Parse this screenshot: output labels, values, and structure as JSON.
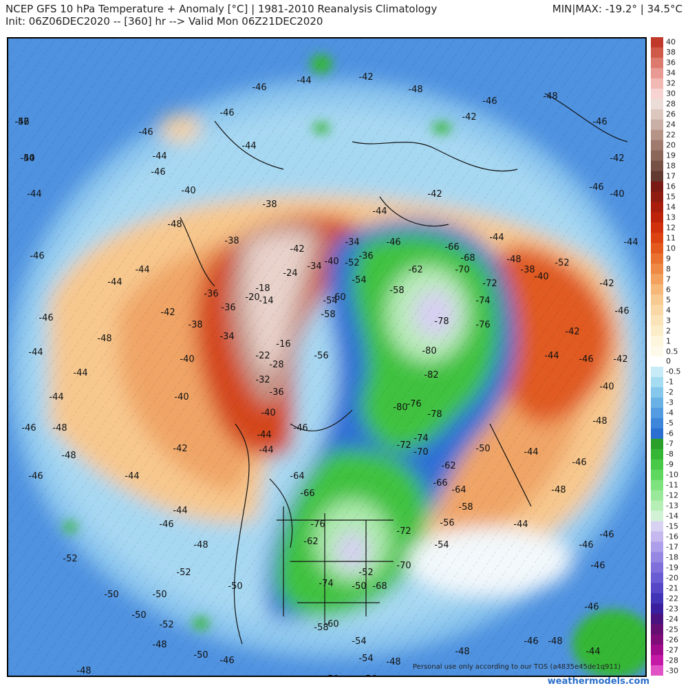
{
  "header": {
    "line1": "NCEP GFS 10 hPa Temperature + Anomaly [°C] | 1981-2010 Reanalysis Climatology",
    "line2": "Init: 06Z06DEC2020 -- [360] hr --> Valid Mon 06Z21DEC2020",
    "minmax": "MIN|MAX: -19.2° | 34.5°C"
  },
  "footer": {
    "brand": "weathermodels.com",
    "note": "Personal use only according to our TOS (a4835e45de1q911)"
  },
  "colorbar": {
    "labels": [
      "40",
      "38",
      "36",
      "34",
      "32",
      "30",
      "28",
      "26",
      "24",
      "22",
      "20",
      "19",
      "18",
      "17",
      "16",
      "15",
      "14",
      "13",
      "12",
      "11",
      "10",
      "9",
      "8",
      "7",
      "6",
      "5",
      "4",
      "3",
      "2",
      "1",
      "0.5",
      "0",
      "-0.5",
      "-1",
      "-2",
      "-3",
      "-4",
      "-5",
      "-6",
      "-7",
      "-8",
      "-9",
      "-10",
      "-11",
      "-12",
      "-13",
      "-14",
      "-15",
      "-16",
      "-17",
      "-18",
      "-19",
      "-20",
      "-21",
      "-22",
      "-23",
      "-24",
      "-25",
      "-26",
      "-27",
      "-28",
      "-30"
    ],
    "colors": [
      "#c0392b",
      "#d05a4a",
      "#dd7a6e",
      "#e89a93",
      "#f2b8b4",
      "#f7d4d1",
      "#ecdcd7",
      "#dcc7bf",
      "#c9afa6",
      "#b69387",
      "#a07a6e",
      "#8c6659",
      "#775046",
      "#633a32",
      "#7a1a14",
      "#8f1c10",
      "#a81d0c",
      "#bd230a",
      "#d0300c",
      "#dd4212",
      "#e45a1e",
      "#e97230",
      "#ee8a45",
      "#f2a25e",
      "#f5b878",
      "#f7ca92",
      "#f9d8a6",
      "#fae3b8",
      "#fcedc9",
      "#fdf5dc",
      "#fefae9",
      "#ffffff",
      "#c8ecf7",
      "#a6dcf1",
      "#86c8ec",
      "#6ab2e6",
      "#539ce1",
      "#3d86da",
      "#2b6fd3",
      "#2aa02a",
      "#35b735",
      "#48c948",
      "#5fd85f",
      "#7ee27e",
      "#9ae99a",
      "#b6efb6",
      "#d2f2d6",
      "#d8d2f2",
      "#c4b8ee",
      "#ae9fea",
      "#9687e3",
      "#7f70dc",
      "#6a5cd2",
      "#5547c6",
      "#4134b7",
      "#3a1f9e",
      "#4a1380",
      "#650f73",
      "#800c7a",
      "#a20c8c",
      "#c51aa8",
      "#e052c5"
    ]
  },
  "contour_labels": [
    "-46",
    "-44",
    "-44",
    "-46",
    "-46",
    "-44",
    "-44",
    "-46",
    "-48",
    "-48",
    "-46",
    "-44",
    "-48",
    "-44",
    "-46",
    "-46",
    "-44",
    "-48",
    "-44",
    "-42",
    "-40",
    "-46",
    "-46",
    "-44",
    "-44",
    "-42",
    "-48",
    "-42",
    "-46",
    "-48",
    "-46",
    "-42",
    "-40",
    "-46",
    "-44",
    "-42",
    "-46",
    "-42",
    "-40",
    "-48",
    "-46",
    "-48",
    "-44",
    "-44",
    "-46",
    "-46",
    "-46",
    "-48",
    "-44",
    "-46",
    "-48",
    "-50",
    "-50",
    "-48",
    "-48",
    "-52",
    "-50",
    "-50",
    "-52",
    "-48",
    "-50",
    "-50",
    "-46",
    "-52",
    "-48",
    "-46",
    "-44",
    "-42",
    "-44",
    "-44",
    "-46",
    "-44",
    "-42",
    "-46",
    "-44",
    "-48",
    "-52",
    "-50",
    "-46",
    "-50",
    "-50",
    "-54",
    "-48",
    "-46",
    "-38",
    "-36",
    "-36",
    "-34",
    "-38",
    "-40",
    "-40",
    "-42",
    "-40",
    "-38",
    "-34",
    "-36",
    "-38",
    "-40",
    "-42",
    "-44",
    "-46",
    "-24",
    "-34",
    "-18",
    "-14",
    "-20",
    "-16",
    "-22",
    "-28",
    "-32",
    "-36",
    "-40",
    "-44",
    "-54",
    "-58",
    "-60",
    "-56",
    "-52",
    "-54",
    "-58",
    "-62",
    "-66",
    "-68",
    "-70",
    "-72",
    "-74",
    "-76",
    "-78",
    "-80",
    "-82",
    "-80",
    "-78",
    "-76",
    "-74",
    "-72",
    "-70",
    "-66",
    "-64",
    "-62",
    "-58",
    "-56",
    "-54",
    "-52",
    "-50",
    "-68",
    "-70",
    "-72",
    "-74",
    "-76",
    "-66",
    "-64",
    "-62",
    "-60",
    "-58",
    "-56",
    "-54",
    "-52",
    "-50"
  ]
}
